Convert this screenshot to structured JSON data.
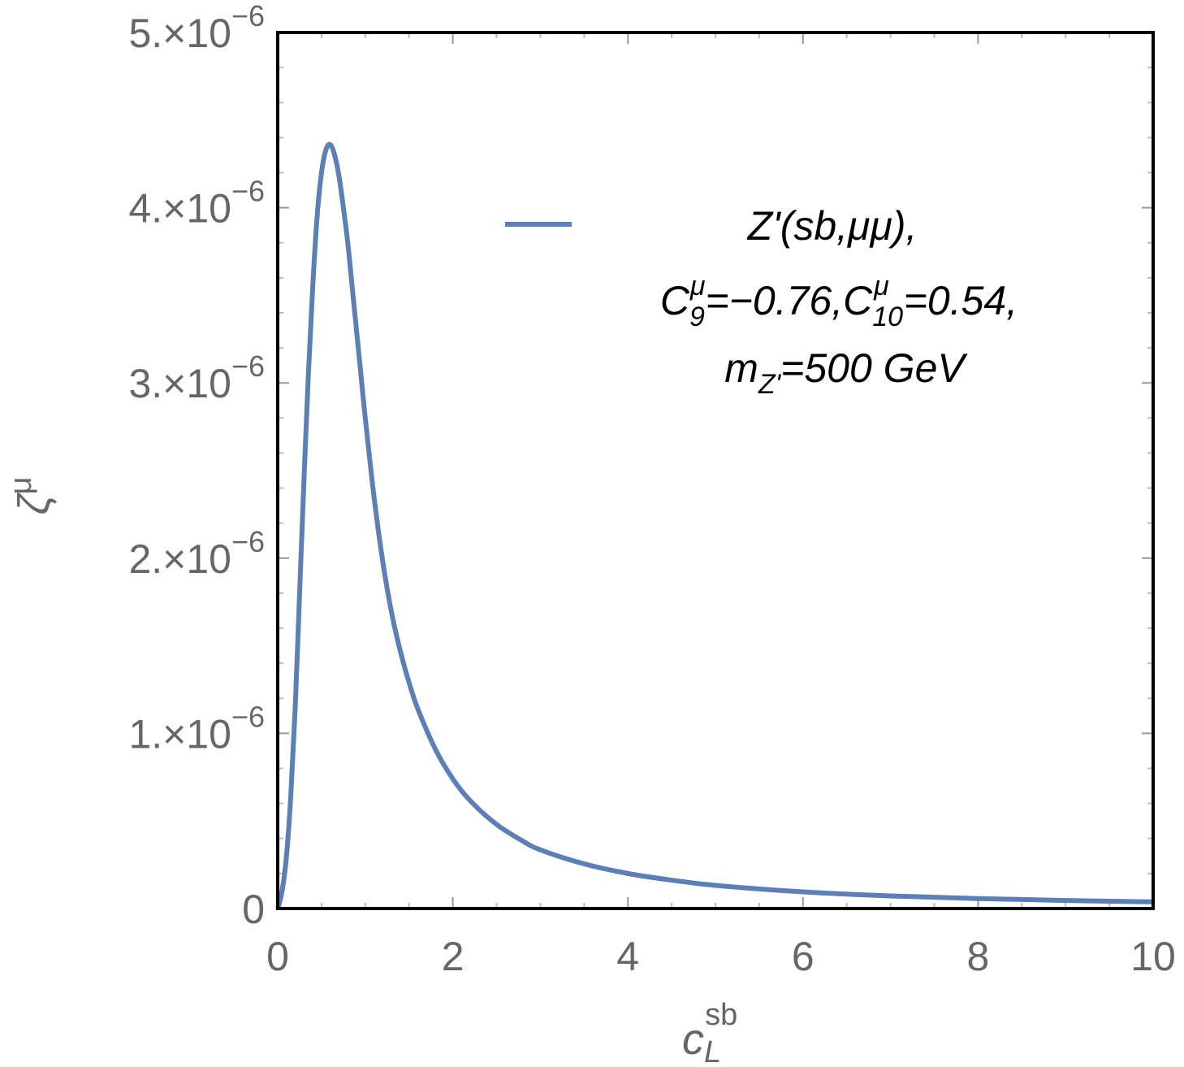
{
  "chart_data": {
    "type": "line",
    "xlabel": {
      "main": "c",
      "sub": "L",
      "sup": "sb"
    },
    "ylabel": {
      "main": "ζ",
      "sup": "μ"
    },
    "xlim": [
      0,
      10
    ],
    "ylim": [
      0,
      5e-06
    ],
    "x_ticks": [
      0,
      2,
      4,
      6,
      8,
      10
    ],
    "x_tick_labels": [
      "0",
      "2",
      "4",
      "6",
      "8",
      "10"
    ],
    "y_ticks": [
      0,
      1e-06,
      2e-06,
      3e-06,
      4e-06,
      5e-06
    ],
    "y_tick_labels": [
      {
        "mant": "0",
        "exp": ""
      },
      {
        "mant": "1.×10",
        "exp": "−6"
      },
      {
        "mant": "2.×10",
        "exp": "−6"
      },
      {
        "mant": "3.×10",
        "exp": "−6"
      },
      {
        "mant": "4.×10",
        "exp": "−6"
      },
      {
        "mant": "5.×10",
        "exp": "−6"
      }
    ],
    "legend_position": "top-right",
    "series": [
      {
        "color": "#5b7fb6",
        "legend": {
          "line1": "Z'(sb,μμ),",
          "line2": {
            "c9": "C",
            "c9_sub": "9",
            "c9_sup": "μ",
            "eq1": "=−0.76,",
            "c10": "C",
            "c10_sub": "10",
            "c10_sup": "μ",
            "eq2": "=0.54,"
          },
          "line3": {
            "m": "m",
            "m_sub": "Z'",
            "eq": "=500 GeV"
          }
        },
        "x": [
          0,
          0.05,
          0.1,
          0.15,
          0.2,
          0.25,
          0.3,
          0.35,
          0.4,
          0.45,
          0.5,
          0.55,
          0.6,
          0.65,
          0.7,
          0.75,
          0.8,
          0.85,
          0.9,
          0.95,
          1.0,
          1.1,
          1.2,
          1.3,
          1.4,
          1.5,
          1.6,
          1.8,
          2.0,
          2.2,
          2.5,
          2.8,
          3.0,
          3.5,
          4.0,
          4.5,
          5.0,
          6.0,
          7.0,
          8.0,
          9.0,
          10.0
        ],
        "y": [
          0,
          1e-07,
          3e-07,
          6.5e-07,
          1.15e-06,
          1.8e-06,
          2.45e-06,
          3.05e-06,
          3.55e-06,
          3.95e-06,
          4.2e-06,
          4.33e-06,
          4.36e-06,
          4.3e-06,
          4.18e-06,
          4e-06,
          3.8e-06,
          3.55e-06,
          3.3e-06,
          3.05e-06,
          2.8e-06,
          2.35e-06,
          1.98e-06,
          1.69e-06,
          1.47e-06,
          1.29e-06,
          1.14e-06,
          9.1e-07,
          7.4e-07,
          6.15e-07,
          4.8e-07,
          3.85e-07,
          3.35e-07,
          2.55e-07,
          2e-07,
          1.62e-07,
          1.32e-07,
          9.5e-08,
          7.2e-08,
          5.7e-08,
          4.6e-08,
          3.8e-08
        ]
      }
    ]
  }
}
